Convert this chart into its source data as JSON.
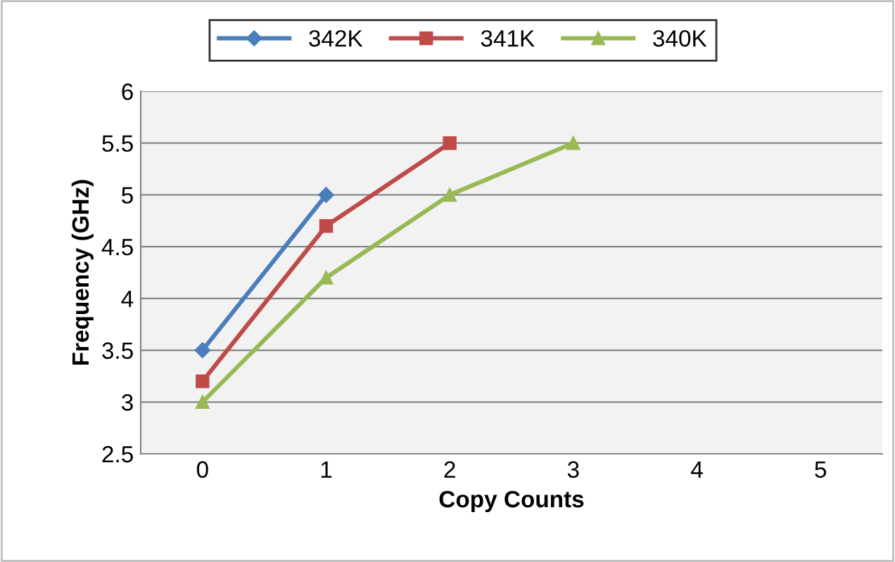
{
  "chart_data": {
    "type": "line",
    "xlabel": "Copy Counts",
    "ylabel": "Frequency (GHz)",
    "categories": [
      "0",
      "1",
      "2",
      "3",
      "4",
      "5"
    ],
    "series": [
      {
        "name": "342K",
        "color": "#4a7ebb",
        "marker": "diamond",
        "values": [
          3.5,
          5.0,
          null,
          null,
          null,
          null
        ]
      },
      {
        "name": "341K",
        "color": "#be4b48",
        "marker": "square",
        "values": [
          3.2,
          4.7,
          5.5,
          null,
          null,
          null
        ]
      },
      {
        "name": "340K",
        "color": "#98b954",
        "marker": "triangle",
        "values": [
          3.0,
          4.2,
          5.0,
          5.5,
          null,
          null
        ]
      }
    ],
    "ylim": [
      2.5,
      6
    ],
    "yticks": [
      2.5,
      3,
      3.5,
      4,
      4.5,
      5,
      5.5,
      6
    ],
    "grid": "y",
    "legend": "top"
  }
}
